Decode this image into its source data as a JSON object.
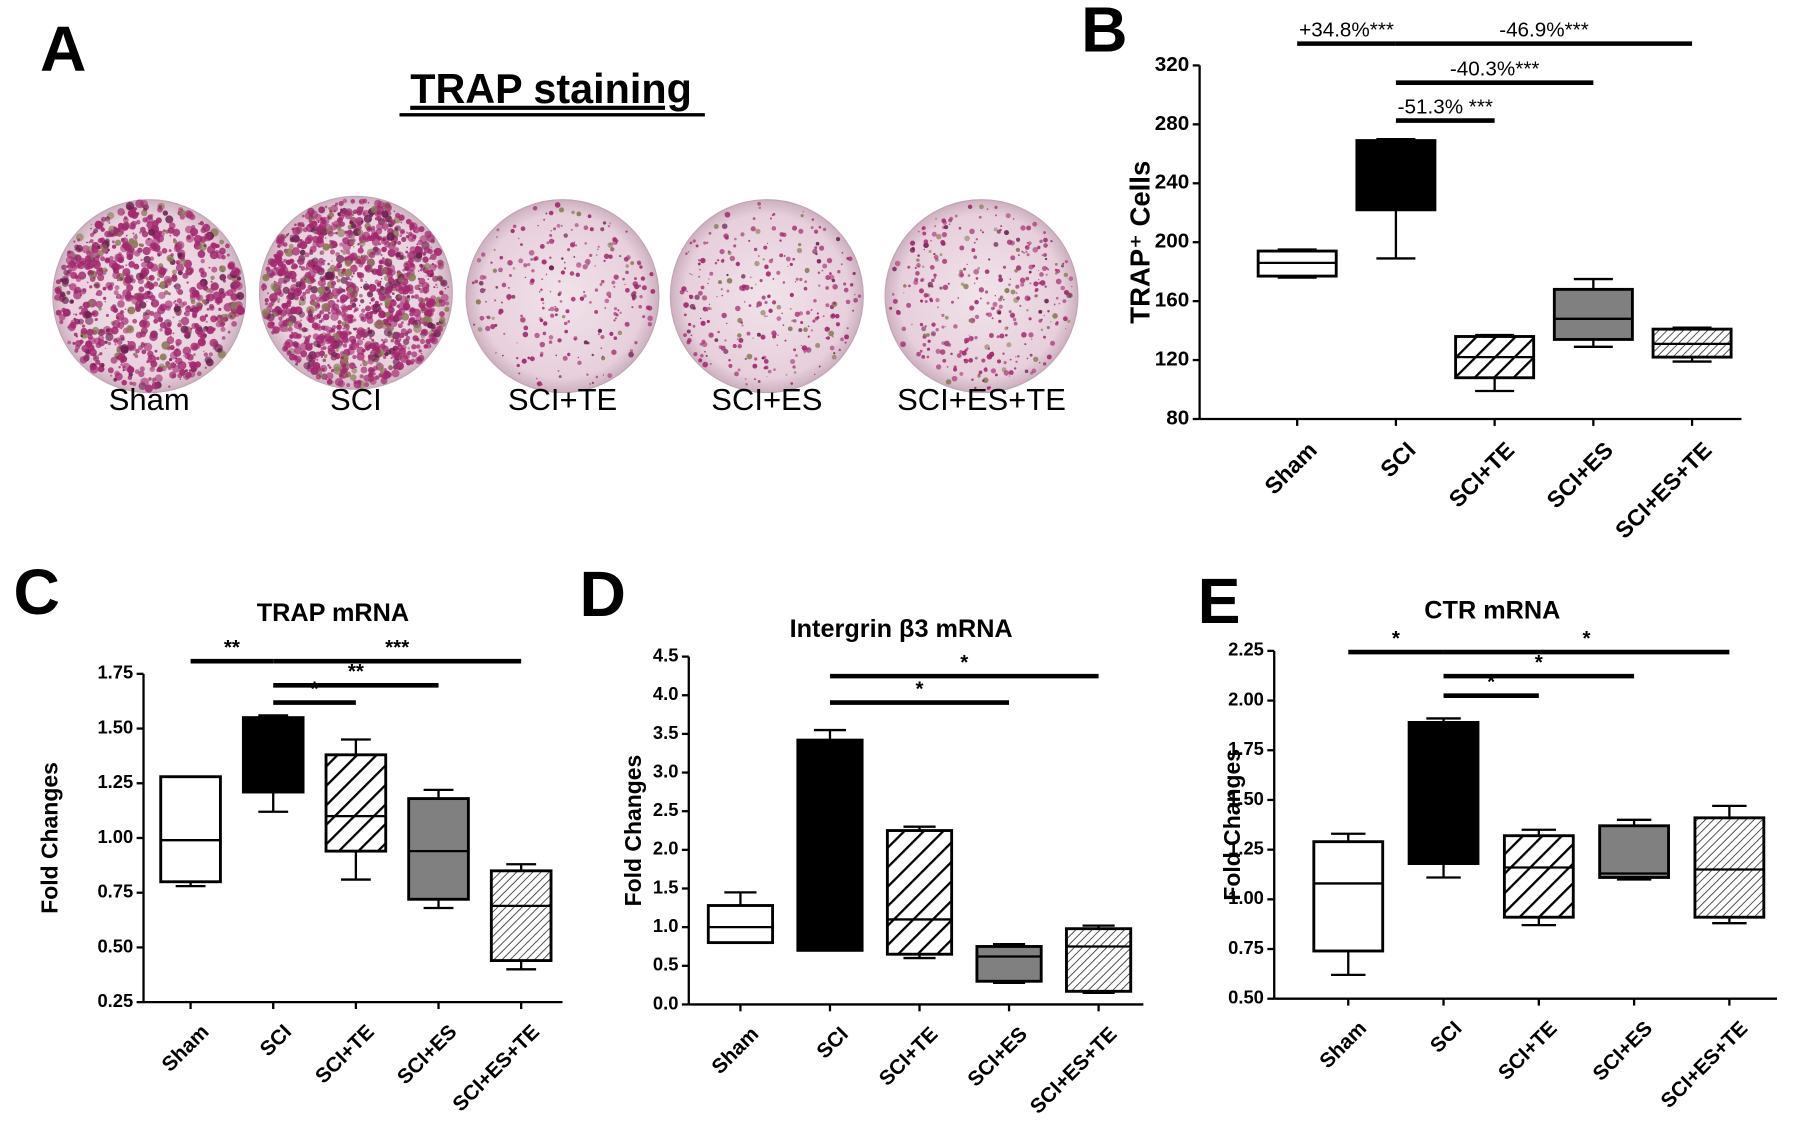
{
  "panel_a": {
    "letter": "A",
    "title": "TRAP staining",
    "wells": [
      "Sham",
      "SCI",
      "SCI+TE",
      "SCI+ES",
      "SCI+ES+TE"
    ]
  },
  "chart_data": [
    {
      "type": "box",
      "letter": "B",
      "ylabel": "TRAP⁺ Cells",
      "categories": [
        "Sham",
        "SCI",
        "SCI+TE",
        "SCI+ES",
        "SCI+ES+TE"
      ],
      "fills": [
        "white",
        "black",
        "hatch",
        "gray",
        "fine-hatch"
      ],
      "boxes": [
        {
          "min": 176,
          "q1": 177,
          "median": 186,
          "q3": 194,
          "max": 195
        },
        {
          "min": 189,
          "q1": 222,
          "median": 268,
          "q3": 269,
          "max": 270
        },
        {
          "min": 99,
          "q1": 108,
          "median": 122,
          "q3": 136,
          "max": 137
        },
        {
          "min": 129,
          "q1": 134,
          "median": 148,
          "q3": 168,
          "max": 175
        },
        {
          "min": 119,
          "q1": 122,
          "median": 131,
          "q3": 141,
          "max": 142
        }
      ],
      "ylim": [
        80,
        320
      ],
      "yticks": [
        80,
        120,
        160,
        200,
        240,
        280,
        320
      ],
      "comparisons": [
        {
          "from": "Sham",
          "to": "SCI",
          "label": "+34.8%***"
        },
        {
          "from": "SCI",
          "to": "SCI+ES+TE",
          "label": "-46.9%***"
        },
        {
          "from": "SCI",
          "to": "SCI+ES",
          "label": "-40.3%***"
        },
        {
          "from": "SCI",
          "to": "SCI+TE",
          "label": "-51.3% ***"
        }
      ]
    },
    {
      "type": "box",
      "letter": "C",
      "title": "TRAP mRNA",
      "ylabel": "Fold Changes",
      "categories": [
        "Sham",
        "SCI",
        "SCI+TE",
        "SCI+ES",
        "SCI+ES+TE"
      ],
      "fills": [
        "white",
        "black",
        "hatch",
        "gray",
        "fine-hatch"
      ],
      "boxes": [
        {
          "min": 0.78,
          "q1": 0.8,
          "median": 0.99,
          "q3": 1.28,
          "max": 1.28
        },
        {
          "min": 1.12,
          "q1": 1.21,
          "median": 1.54,
          "q3": 1.55,
          "max": 1.56
        },
        {
          "min": 0.81,
          "q1": 0.94,
          "median": 1.1,
          "q3": 1.38,
          "max": 1.45
        },
        {
          "min": 0.68,
          "q1": 0.72,
          "median": 0.94,
          "q3": 1.18,
          "max": 1.22
        },
        {
          "min": 0.4,
          "q1": 0.44,
          "median": 0.69,
          "q3": 0.85,
          "max": 0.88
        }
      ],
      "ylim": [
        0.25,
        1.75
      ],
      "yticks": [
        0.25,
        {
          "value": 0.5,
          "label": "0.50"
        },
        0.75,
        {
          "value": 1,
          "label": "1.00"
        },
        1.25,
        {
          "value": 1.5,
          "label": "1.50"
        },
        1.75
      ],
      "comparisons": [
        {
          "from": "Sham",
          "to": "SCI",
          "label": "**"
        },
        {
          "from": "SCI",
          "to": "SCI+ES+TE",
          "label": "***"
        },
        {
          "from": "SCI",
          "to": "SCI+ES",
          "label": "**"
        },
        {
          "from": "SCI",
          "to": "SCI+TE",
          "label": "*"
        }
      ]
    },
    {
      "type": "box",
      "letter": "D",
      "title": "Intergrin β3 mRNA",
      "ylabel": "Fold  Changes",
      "categories": [
        "Sham",
        "SCI",
        "SCI+TE",
        "SCI+ES",
        "SCI+ES+TE"
      ],
      "fills": [
        "white",
        "black",
        "hatch",
        "gray",
        "fine-hatch"
      ],
      "boxes": [
        {
          "min": 0.8,
          "q1": 0.8,
          "median": 1.0,
          "q3": 1.28,
          "max": 1.45
        },
        {
          "min": 0.7,
          "q1": 0.7,
          "median": 3.38,
          "q3": 3.42,
          "max": 3.55
        },
        {
          "min": 0.6,
          "q1": 0.65,
          "median": 1.1,
          "q3": 2.25,
          "max": 2.3
        },
        {
          "min": 0.28,
          "q1": 0.3,
          "median": 0.62,
          "q3": 0.75,
          "max": 0.78
        },
        {
          "min": 0.15,
          "q1": 0.17,
          "median": 0.75,
          "q3": 0.98,
          "max": 1.02
        }
      ],
      "ylim": [
        0,
        4.5
      ],
      "yticks": [
        {
          "value": 0,
          "label": "0.0"
        },
        0.5,
        {
          "value": 1,
          "label": "1.0"
        },
        1.5,
        {
          "value": 2,
          "label": "2.0"
        },
        2.5,
        {
          "value": 3,
          "label": "3.0"
        },
        3.5,
        {
          "value": 4,
          "label": "4.0"
        },
        4.5
      ],
      "comparisons": [
        {
          "from": "SCI",
          "to": "SCI+ES+TE",
          "label": "*"
        },
        {
          "from": "SCI",
          "to": "SCI+ES",
          "label": "*"
        }
      ]
    },
    {
      "type": "box",
      "letter": "E",
      "title": "CTR mRNA",
      "ylabel": "Fold  Changes",
      "categories": [
        "Sham",
        "SCI",
        "SCI+TE",
        "SCI+ES",
        "SCI+ES+TE"
      ],
      "fills": [
        "white",
        "black",
        "hatch",
        "gray",
        "fine-hatch"
      ],
      "boxes": [
        {
          "min": 0.62,
          "q1": 0.74,
          "median": 1.08,
          "q3": 1.29,
          "max": 1.33
        },
        {
          "min": 1.11,
          "q1": 1.18,
          "median": 1.88,
          "q3": 1.89,
          "max": 1.91
        },
        {
          "min": 0.87,
          "q1": 0.91,
          "median": 1.16,
          "q3": 1.32,
          "max": 1.35
        },
        {
          "min": 1.1,
          "q1": 1.11,
          "median": 1.13,
          "q3": 1.37,
          "max": 1.4
        },
        {
          "min": 0.88,
          "q1": 0.91,
          "median": 1.15,
          "q3": 1.41,
          "max": 1.47
        }
      ],
      "ylim": [
        0.5,
        2.25
      ],
      "yticks": [
        {
          "value": 0.5,
          "label": "0.50"
        },
        0.75,
        {
          "value": 1,
          "label": "1.00"
        },
        1.25,
        {
          "value": 1.5,
          "label": "1.50"
        },
        1.75,
        {
          "value": 2,
          "label": "2.00"
        },
        2.25
      ],
      "comparisons": [
        {
          "from": "Sham",
          "to": "SCI",
          "label": "*"
        },
        {
          "from": "SCI",
          "to": "SCI+ES+TE",
          "label": "*"
        },
        {
          "from": "SCI",
          "to": "SCI+ES",
          "label": "*"
        },
        {
          "from": "SCI",
          "to": "SCI+TE",
          "label": "*"
        }
      ]
    }
  ]
}
